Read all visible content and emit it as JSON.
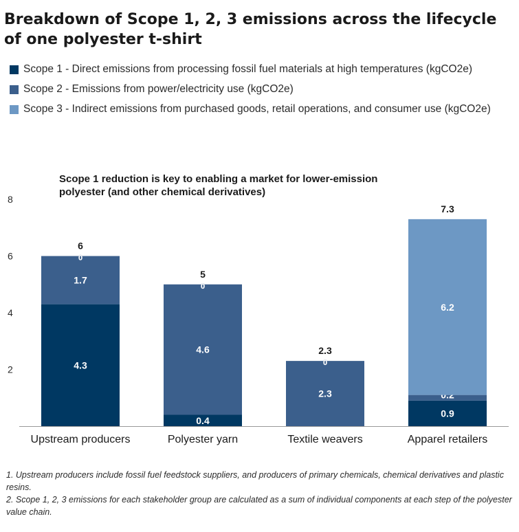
{
  "title": "Breakdown of Scope 1, 2, 3 emissions across the lifecycle of one polyester t-shirt",
  "legend": [
    {
      "label": "Scope 1 - Direct emissions from processing fossil fuel materials at high temperatures (kgCO2e)",
      "color": "#003862"
    },
    {
      "label": "Scope 2 - Emissions from power/electricity use (kgCO2e)",
      "color": "#3b5f8c"
    },
    {
      "label": "Scope 3 - Indirect emissions from purchased goods, retail operations, and consumer use (kgCO2e)",
      "color": "#6d98c4"
    }
  ],
  "chart_data": {
    "type": "bar",
    "stacked": true,
    "subtitle": "Scope 1 reduction is key to enabling a market for lower-emission polyester (and other chemical derivatives)",
    "categories": [
      "Upstream producers",
      "Polyester yarn",
      "Textile weavers",
      "Apparel retailers"
    ],
    "series": [
      {
        "name": "Scope 1",
        "color": "#003862",
        "values": [
          4.3,
          0.4,
          0,
          0.9
        ],
        "labels": [
          "4.3",
          "0.4",
          "0",
          "0.9"
        ]
      },
      {
        "name": "Scope 2",
        "color": "#3b5f8c",
        "values": [
          1.7,
          4.6,
          2.3,
          0.2
        ],
        "labels": [
          "1.7",
          "4.6",
          "2.3",
          "0.2"
        ]
      },
      {
        "name": "Scope 3",
        "color": "#6d98c4",
        "values": [
          0,
          0,
          0,
          6.2
        ],
        "labels": [
          "0",
          "0",
          "0",
          "6.2"
        ]
      }
    ],
    "totals": [
      6,
      5,
      2.3,
      7.3
    ],
    "total_labels": [
      "6",
      "5",
      "2.3",
      "7.3"
    ],
    "yticks": [
      2,
      4,
      6,
      8
    ],
    "ylim": [
      0,
      8
    ],
    "grid": false
  },
  "footnotes": [
    "1. Upstream producers include fossil fuel feedstock suppliers, and producers of primary chemicals, chemical derivatives and plastic resins.",
    "2. Scope 1, 2, 3 emissions for each stakeholder group are calculated as a sum of individual components at each step of the polyester value chain."
  ]
}
